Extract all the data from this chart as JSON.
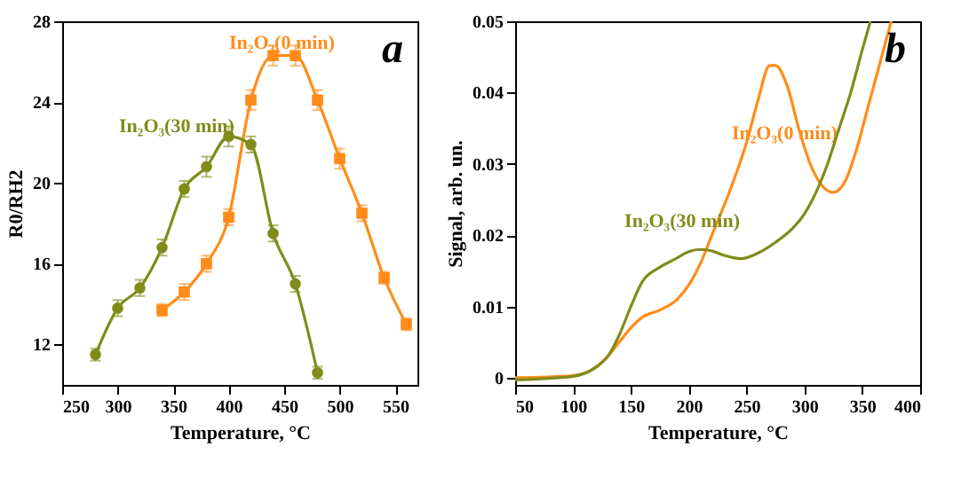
{
  "chart_data": [
    {
      "type": "line",
      "xlabel": "Temperature, °C",
      "ylabel": "R0/RH2",
      "xlim": [
        250,
        570
      ],
      "ylim": [
        10,
        28
      ],
      "xticks": [
        250,
        300,
        350,
        400,
        450,
        500,
        550
      ],
      "yticks": [
        12,
        16,
        20,
        24,
        28
      ],
      "grid": false,
      "line_style": "solid",
      "annotations": [
        "a"
      ],
      "series": [
        {
          "name": "In₂O₃(0 min)",
          "color": "#ff8c1a",
          "marker": "square",
          "x": [
            340,
            360,
            380,
            400,
            420,
            440,
            460,
            480,
            500,
            520,
            540,
            560
          ],
          "values": [
            13.7,
            14.6,
            16.0,
            18.3,
            24.1,
            26.3,
            26.3,
            24.1,
            21.2,
            18.5,
            15.3,
            13.0
          ],
          "errors": [
            0.3,
            0.4,
            0.4,
            0.4,
            0.5,
            0.5,
            0.5,
            0.5,
            0.5,
            0.4,
            0.3,
            0.3
          ]
        },
        {
          "name": "In₂O₃(30 min)",
          "color": "#7f8c1a",
          "marker": "circle",
          "x": [
            280,
            300,
            320,
            340,
            360,
            380,
            400,
            420,
            440,
            460,
            480
          ],
          "values": [
            11.5,
            13.8,
            14.8,
            16.8,
            19.7,
            20.8,
            22.3,
            21.9,
            17.5,
            15.0,
            10.6
          ],
          "errors": [
            0.3,
            0.4,
            0.4,
            0.4,
            0.4,
            0.5,
            0.5,
            0.4,
            0.4,
            0.4,
            0.3
          ]
        }
      ]
    },
    {
      "type": "line",
      "xlabel": "Temperature, °C",
      "ylabel": "Signal, arb. un.",
      "xlim": [
        50,
        400
      ],
      "ylim": [
        -0.001,
        0.05
      ],
      "xticks": [
        50,
        100,
        150,
        200,
        250,
        300,
        350,
        400
      ],
      "yticks": [
        0,
        0.01,
        0.02,
        0.03,
        0.04,
        0.05
      ],
      "grid": false,
      "line_style": "solid",
      "marker": "none",
      "annotations": [
        "b"
      ],
      "series": [
        {
          "name": "In₂O₃(0 min)",
          "color": "#ff8c1a",
          "x": [
            50,
            100,
            120,
            130,
            140,
            150,
            160,
            175,
            190,
            200,
            210,
            220,
            235,
            250,
            260,
            270,
            275,
            285,
            295,
            305,
            315,
            325,
            335,
            345,
            355,
            365,
            375
          ],
          "values": [
            0.0,
            0.0003,
            0.0015,
            0.003,
            0.005,
            0.007,
            0.0085,
            0.0095,
            0.011,
            0.013,
            0.016,
            0.02,
            0.026,
            0.033,
            0.039,
            0.0438,
            0.0438,
            0.041,
            0.035,
            0.03,
            0.027,
            0.026,
            0.0275,
            0.032,
            0.038,
            0.044,
            0.05
          ]
        },
        {
          "name": "In₂O₃(30 min)",
          "color": "#7f8c1a",
          "x": [
            50,
            100,
            120,
            130,
            140,
            150,
            160,
            175,
            190,
            200,
            210,
            220,
            230,
            245,
            260,
            275,
            290,
            300,
            310,
            320,
            330,
            340,
            350,
            357
          ],
          "values": [
            -0.0003,
            0.0002,
            0.0015,
            0.003,
            0.006,
            0.01,
            0.0135,
            0.0155,
            0.0168,
            0.0177,
            0.018,
            0.0178,
            0.0172,
            0.0167,
            0.0175,
            0.019,
            0.021,
            0.023,
            0.026,
            0.03,
            0.035,
            0.04,
            0.046,
            0.05
          ]
        }
      ]
    }
  ]
}
